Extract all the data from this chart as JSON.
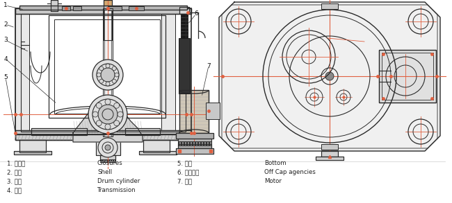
{
  "bg_color": "#ffffff",
  "line_color": "#2a2a2a",
  "gray_color": "#888888",
  "dark_gray": "#555555",
  "light_gray": "#cccccc",
  "red_line_color": "#e06040",
  "hatch_color": "#aaaaaa",
  "legend_items": [
    [
      "1. 密封盖",
      "Closures",
      "5. 底板",
      "Bottom"
    ],
    [
      "2. 外壳",
      "Shell",
      "6. 开盖机构",
      "Off Cap agencies"
    ],
    [
      "3. 转鼓",
      "Drum cylinder",
      "7. 电机",
      "Motor"
    ],
    [
      "4. 传动",
      "Transmission",
      "",
      ""
    ]
  ],
  "figsize": [
    6.5,
    2.93
  ],
  "dpi": 100
}
